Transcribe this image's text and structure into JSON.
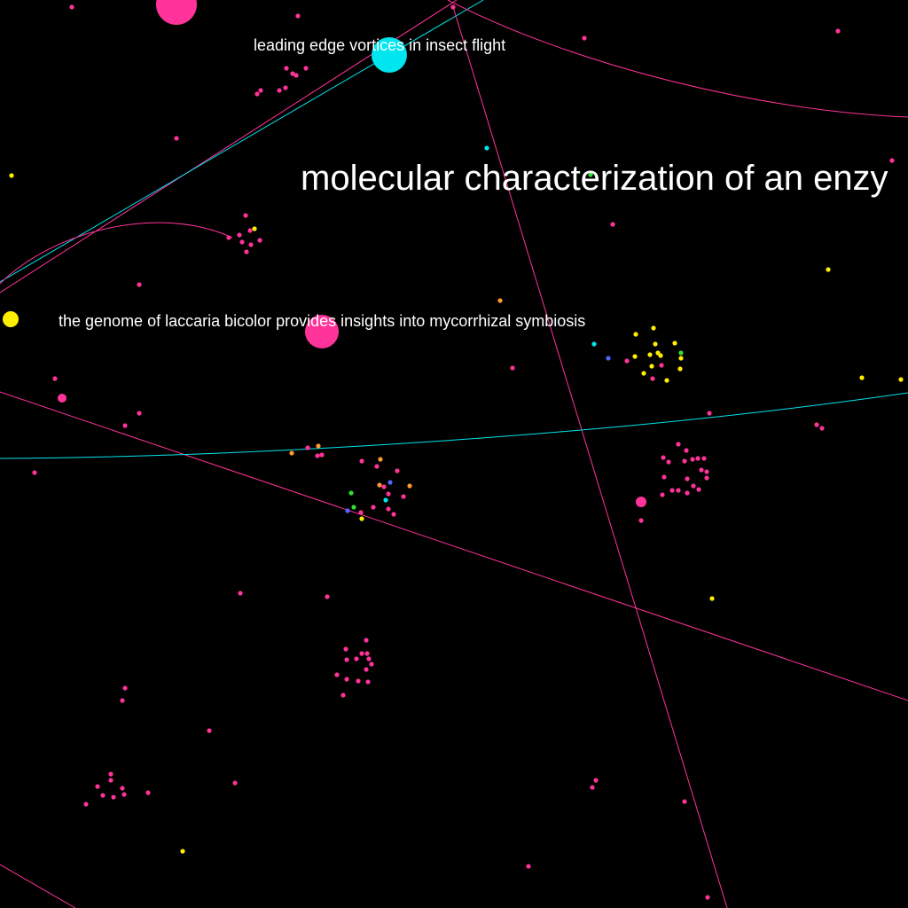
{
  "labels": {
    "leading_edge": "leading edge vortices in insect flight",
    "laccaria": "the genome of laccaria bicolor provides insights into mycorrhizal symbiosis",
    "molecular": "molecular characterization of an enzy"
  },
  "colors": {
    "background": "#000000",
    "pink": "#ff3399",
    "cyan": "#00e5ee",
    "yellow": "#ffee00",
    "orange": "#ff9933",
    "green": "#33dd33",
    "blue": "#5566ff",
    "label": "#ffffff"
  }
}
